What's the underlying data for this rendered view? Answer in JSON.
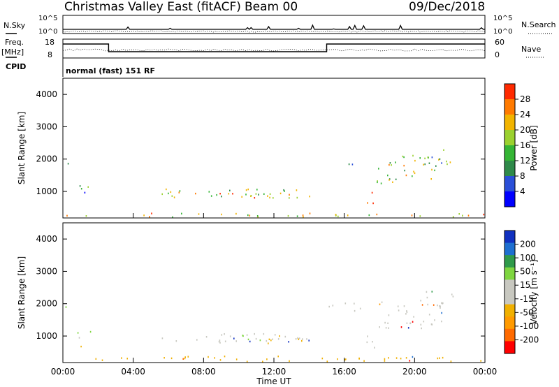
{
  "header": {
    "station": "Christmas Valley East (fitACF)",
    "beam": "Beam 00",
    "date": "09/Dec/2018"
  },
  "status_panels": {
    "nsky_label": "N.Sky",
    "nsearch_label": "N.Search",
    "noise_ticks_left": [
      "10^5",
      "10^0"
    ],
    "noise_ticks_right": [
      "10^5",
      "10^0"
    ],
    "freq_label": "Freq.",
    "freq_unit": "[MHz]",
    "freq_ticks": [
      "18",
      "8"
    ],
    "nave_label": "Nave",
    "nave_ticks": [
      "60",
      "0"
    ],
    "cpid_label": "CPID",
    "cpid_text": "normal (fast) 151 RF"
  },
  "chart_data": [
    {
      "type": "heatmap",
      "name": "Power",
      "ylabel": "Slant Range [km]",
      "ylim": [
        180,
        4500
      ],
      "yticks": [
        "1000",
        "2000",
        "3000",
        "4000"
      ],
      "colorbar_label": "Power [dB]",
      "colorbar_ticks": [
        "28",
        "24",
        "20",
        "16",
        "12",
        "8",
        "4"
      ],
      "color_scale": [
        "#0000ff",
        "#2a4fd8",
        "#2f8a4a",
        "#35b535",
        "#9bd12f",
        "#f2b400",
        "#ff7a00",
        "#ff2a00"
      ],
      "regions": [
        {
          "t": [
            0.0,
            0.3
          ],
          "r": [
            1700,
            1950
          ],
          "level": 0.35
        },
        {
          "t": [
            0.8,
            1.7
          ],
          "r": [
            780,
            1200
          ],
          "level": 0.3
        },
        {
          "t": [
            5.6,
            14.7
          ],
          "r": [
            800,
            1100
          ],
          "level": 0.55
        },
        {
          "t": [
            8.0,
            13.5
          ],
          "r": [
            820,
            1050
          ],
          "level": 0.7
        },
        {
          "t": [
            15.0,
            16.6
          ],
          "r": [
            1850,
            1950
          ],
          "level": 0.25
        },
        {
          "t": [
            17.2,
            17.9
          ],
          "r": [
            650,
            1050
          ],
          "level": 0.85
        },
        {
          "t": [
            17.8,
            21.5
          ],
          "r": [
            1250,
            2150
          ],
          "level": 0.6
        },
        {
          "t": [
            20.5,
            22.2
          ],
          "r": [
            1800,
            2350
          ],
          "level": 0.45
        },
        {
          "t": [
            0.0,
            24.0
          ],
          "r": [
            180,
            350
          ],
          "level": 0.65
        }
      ]
    },
    {
      "type": "heatmap",
      "name": "Velocity",
      "ylabel": "Slant Range [km]",
      "ylim": [
        180,
        4500
      ],
      "yticks": [
        "1000",
        "2000",
        "3000",
        "4000"
      ],
      "xlabel": "Time UT",
      "xticks": [
        "00:00",
        "04:00",
        "08:00",
        "12:00",
        "16:00",
        "20:00",
        "00:00"
      ],
      "colorbar_label": "Velocity [m s⁻¹]",
      "colorbar_ticks": [
        "200",
        "100",
        "50",
        "15",
        "-15",
        "-50",
        "-100",
        "-200"
      ],
      "color_scale": [
        "#ff0000",
        "#ff6a00",
        "#ff9a00",
        "#f0b000",
        "#c8c8c0",
        "#c8c8c0",
        "#7fd640",
        "#2f9a4a",
        "#1e6fd0",
        "#1030c0"
      ],
      "regions": [
        {
          "t": [
            0.0,
            0.4
          ],
          "r": [
            1650,
            1950
          ],
          "level": 0.35,
          "color": "#7fd640"
        },
        {
          "t": [
            0.8,
            1.7
          ],
          "r": [
            700,
            1200
          ],
          "level": 0.35,
          "color": "#7fd640"
        },
        {
          "t": [
            5.6,
            14.5
          ],
          "r": [
            800,
            1100
          ],
          "level": 0.5,
          "color": "#c8c8c0"
        },
        {
          "t": [
            9.5,
            12.0
          ],
          "r": [
            820,
            1050
          ],
          "level": 0.5,
          "color": "#7fd640"
        },
        {
          "t": [
            11.5,
            14.0
          ],
          "r": [
            780,
            1050
          ],
          "level": 0.6,
          "color": "#f0b000"
        },
        {
          "t": [
            15.0,
            17.5
          ],
          "r": [
            1800,
            2050
          ],
          "level": 0.3,
          "color": "#c8c8c0"
        },
        {
          "t": [
            17.0,
            18.0
          ],
          "r": [
            620,
            1050
          ],
          "level": 0.9,
          "color": "#c8c8c0"
        },
        {
          "t": [
            17.8,
            21.8
          ],
          "r": [
            1250,
            2150
          ],
          "level": 0.55,
          "color": "#c8c8c0"
        },
        {
          "t": [
            20.5,
            22.2
          ],
          "r": [
            1800,
            2400
          ],
          "level": 0.45,
          "color": "#c8c8c0"
        },
        {
          "t": [
            0.0,
            24.0
          ],
          "r": [
            180,
            400
          ],
          "level": 0.65,
          "color": "#f0b000"
        }
      ]
    }
  ],
  "freq_step_profile": [
    {
      "t0": 0.0,
      "t1": 2.6,
      "level": "high"
    },
    {
      "t0": 2.6,
      "t1": 15.0,
      "level": "low"
    },
    {
      "t0": 15.0,
      "t1": 24.0,
      "level": "high"
    }
  ]
}
